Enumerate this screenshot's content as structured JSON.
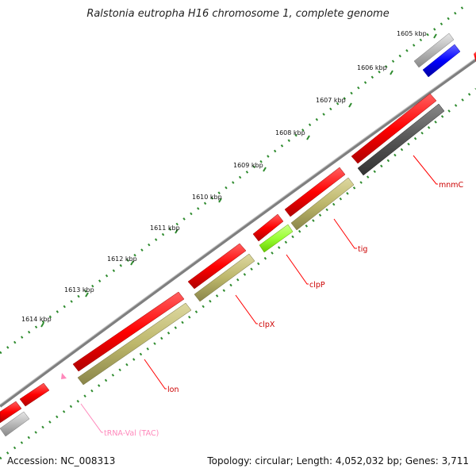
{
  "title": "Ralstonia eutropha H16 chromosome 1, complete genome",
  "footer": {
    "accession": "Accession: NC_008313",
    "summary": "Topology: circular; Length: 4,052,032 bp; Genes: 3,711"
  },
  "scale_labels": [
    "1605 kbp",
    "1606 kbp",
    "1607 kbp",
    "1608 kbp",
    "1609 kbp",
    "1610 kbp",
    "1611 kbp",
    "1612 kbp",
    "1613 kbp",
    "1614 kbp"
  ],
  "gene_labels": [
    {
      "name": "mnmC",
      "color": "#cc0000"
    },
    {
      "name": "tig",
      "color": "#cc0000"
    },
    {
      "name": "clpP",
      "color": "#cc0000"
    },
    {
      "name": "clpX",
      "color": "#cc0000"
    },
    {
      "name": "lon",
      "color": "#cc0000"
    },
    {
      "name": "tRNA-Val (TAC)",
      "color": "#ff88bb"
    }
  ],
  "colors": {
    "cds": "#ff0000",
    "gene_olive": "#bdb76b",
    "gene_gray": "#b0b0b0",
    "gene_darkgray": "#555555",
    "gene_blue": "#0000ff",
    "gene_lime": "#99ff33",
    "trna": "#ff88bb",
    "backbone": "#888888",
    "ticks": "#2e8b2e"
  }
}
